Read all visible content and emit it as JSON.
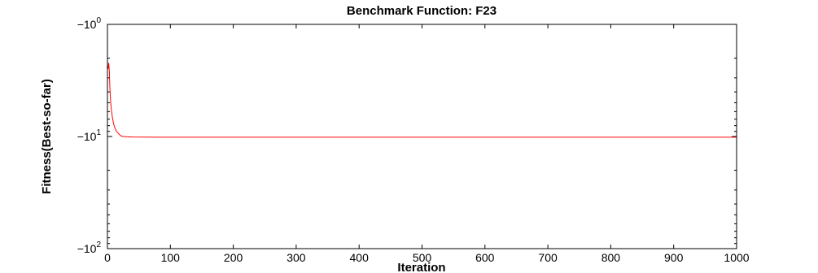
{
  "chart_data": {
    "type": "line",
    "title": "Benchmark Function: F23",
    "xlabel": "Iteration",
    "ylabel": "Fitness(Best-so-far)",
    "xlim": [
      0,
      1000
    ],
    "ylim": [
      -100,
      -1
    ],
    "yscale": "symlog-negative",
    "x_ticks": [
      "0",
      "100",
      "200",
      "300",
      "400",
      "500",
      "600",
      "700",
      "800",
      "900",
      "1000"
    ],
    "y_ticks": [
      {
        "base": "−10",
        "exp": "0",
        "value": -1
      },
      {
        "base": "−10",
        "exp": "1",
        "value": -10
      },
      {
        "base": "−10",
        "exp": "2",
        "value": -100
      }
    ],
    "grid": false,
    "series": [
      {
        "color": "#ff0000",
        "x": [
          1,
          2,
          3,
          4,
          5,
          6,
          7,
          8,
          9,
          10,
          12,
          14,
          16,
          18,
          20,
          22,
          25,
          30,
          40,
          60,
          80,
          100,
          150,
          200,
          300,
          500,
          1000
        ],
        "y": [
          -2.5,
          -2.2,
          -2.6,
          -3.8,
          -4.8,
          -5.6,
          -6.2,
          -6.8,
          -7.3,
          -7.8,
          -8.4,
          -8.9,
          -9.2,
          -9.5,
          -9.7,
          -9.9,
          -10.0,
          -10.05,
          -10.1,
          -10.12,
          -10.14,
          -10.15,
          -10.15,
          -10.15,
          -10.15,
          -10.15,
          -10.15
        ]
      }
    ]
  }
}
